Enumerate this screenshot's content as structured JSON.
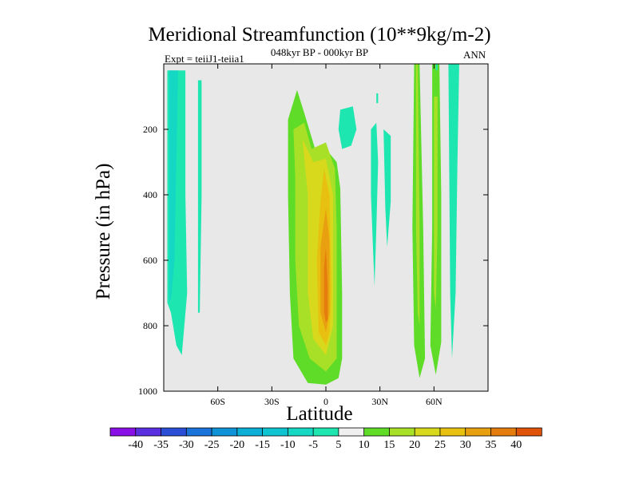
{
  "chart_data": {
    "type": "contour",
    "title": "Meridional Streamfunction (10**9kg/m-2)",
    "subtitle": "048kyr BP - 000kyr BP",
    "left_label": "Expt = teiiJ1-teiia1",
    "right_label": "ANN",
    "xlabel": "Latitude",
    "ylabel": "Pressure (in hPa)",
    "xlim": [
      -90,
      90
    ],
    "ylim": [
      1000,
      0
    ],
    "x_ticks": [
      {
        "value": -60,
        "label": "60S"
      },
      {
        "value": -30,
        "label": "30S"
      },
      {
        "value": 0,
        "label": "0"
      },
      {
        "value": 30,
        "label": "30N"
      },
      {
        "value": 60,
        "label": "60N"
      }
    ],
    "y_ticks": [
      {
        "value": 200,
        "label": "200"
      },
      {
        "value": 400,
        "label": "400"
      },
      {
        "value": 600,
        "label": "600"
      },
      {
        "value": 800,
        "label": "800"
      },
      {
        "value": 1000,
        "label": "1000"
      }
    ],
    "background_color": "#e8e8e8",
    "colorbar": {
      "levels": [
        "-40",
        "-35",
        "-30",
        "-25",
        "-20",
        "-15",
        "-10",
        "-5",
        "5",
        "10",
        "15",
        "20",
        "25",
        "30",
        "35",
        "40"
      ],
      "colors": [
        "#8a0fe6",
        "#5a2fe0",
        "#2a4fd6",
        "#1a73d8",
        "#0f93d6",
        "#0aaed6",
        "#0fc4d2",
        "#14d8c4",
        "#1ee6b0",
        "#f0f0f0",
        "#5edc28",
        "#a8e028",
        "#d8d81c",
        "#e8c010",
        "#e8a010",
        "#e47c0e",
        "#e0540a"
      ]
    },
    "regions": [
      {
        "name": "sh-high-lat-negative",
        "value": -5,
        "color": "#1ee6b0",
        "points": [
          [
            -88,
            20
          ],
          [
            -78,
            20
          ],
          [
            -78,
            400
          ],
          [
            -77,
            700
          ],
          [
            -80,
            890
          ],
          [
            -83,
            860
          ],
          [
            -86,
            760
          ],
          [
            -88,
            730
          ]
        ]
      },
      {
        "name": "sh-high-lat-negative-core",
        "value": -10,
        "color": "#14d8c4",
        "points": [
          [
            -87,
            20
          ],
          [
            -82,
            20
          ],
          [
            -83,
            300
          ],
          [
            -84,
            600
          ],
          [
            -86,
            720
          ],
          [
            -87,
            720
          ]
        ]
      },
      {
        "name": "sh-narrow-negative",
        "value": -5,
        "color": "#1ee6b0",
        "points": [
          [
            -71,
            50
          ],
          [
            -69,
            50
          ],
          [
            -69,
            400
          ],
          [
            -70,
            760
          ],
          [
            -71,
            760
          ]
        ]
      },
      {
        "name": "tropical-cell-5",
        "value": 5,
        "color": "#5edc28",
        "points": [
          [
            -21,
            170
          ],
          [
            -16,
            80
          ],
          [
            -12,
            150
          ],
          [
            -6,
            260
          ],
          [
            0,
            260
          ],
          [
            6,
            300
          ],
          [
            8,
            380
          ],
          [
            9,
            700
          ],
          [
            9,
            900
          ],
          [
            7,
            960
          ],
          [
            0,
            980
          ],
          [
            -10,
            975
          ],
          [
            -18,
            900
          ],
          [
            -20,
            700
          ],
          [
            -21,
            400
          ]
        ]
      },
      {
        "name": "tropical-cell-10",
        "value": 10,
        "color": "#a8e028",
        "points": [
          [
            -18,
            200
          ],
          [
            -12,
            180
          ],
          [
            -8,
            260
          ],
          [
            0,
            240
          ],
          [
            5,
            320
          ],
          [
            6,
            500
          ],
          [
            6,
            900
          ],
          [
            0,
            940
          ],
          [
            -9,
            900
          ],
          [
            -15,
            800
          ],
          [
            -17,
            600
          ],
          [
            -17,
            350
          ]
        ]
      },
      {
        "name": "tropical-cell-15",
        "value": 15,
        "color": "#d8d81c",
        "points": [
          [
            -13,
            230
          ],
          [
            -7,
            300
          ],
          [
            0,
            290
          ],
          [
            4,
            400
          ],
          [
            4,
            800
          ],
          [
            0,
            890
          ],
          [
            -7,
            840
          ],
          [
            -10,
            700
          ],
          [
            -10,
            400
          ]
        ]
      },
      {
        "name": "tropical-cell-20",
        "value": 20,
        "color": "#e8c010",
        "points": [
          [
            -1,
            320
          ],
          [
            2,
            400
          ],
          [
            3,
            700
          ],
          [
            2,
            820
          ],
          [
            0,
            860
          ],
          [
            -4,
            820
          ],
          [
            -5,
            600
          ],
          [
            -3,
            420
          ]
        ]
      },
      {
        "name": "tropical-cell-25",
        "value": 25,
        "color": "#e8a010",
        "points": [
          [
            0,
            440
          ],
          [
            2,
            540
          ],
          [
            2,
            760
          ],
          [
            0,
            820
          ],
          [
            -3,
            760
          ],
          [
            -3,
            560
          ]
        ]
      },
      {
        "name": "tropical-cell-30",
        "value": 30,
        "color": "#e47c0e",
        "points": [
          [
            0,
            560
          ],
          [
            1,
            680
          ],
          [
            1,
            780
          ],
          [
            0,
            790
          ],
          [
            -1,
            760
          ],
          [
            -1,
            620
          ]
        ]
      },
      {
        "name": "upper-blob-negative",
        "value": -5,
        "color": "#1ee6b0",
        "points": [
          [
            8,
            140
          ],
          [
            15,
            130
          ],
          [
            17,
            200
          ],
          [
            14,
            250
          ],
          [
            9,
            260
          ],
          [
            7,
            200
          ]
        ]
      },
      {
        "name": "mid-narrow-negative-1",
        "value": -5,
        "color": "#1ee6b0",
        "points": [
          [
            25,
            200
          ],
          [
            28,
            180
          ],
          [
            29,
            300
          ],
          [
            28,
            500
          ],
          [
            27,
            680
          ],
          [
            26,
            540
          ],
          [
            25,
            400
          ]
        ]
      },
      {
        "name": "mid-narrow-negative-2",
        "value": -5,
        "color": "#1ee6b0",
        "points": [
          [
            32,
            200
          ],
          [
            36,
            220
          ],
          [
            36,
            420
          ],
          [
            34,
            560
          ],
          [
            33,
            440
          ]
        ]
      },
      {
        "name": "mid-tiny-negative",
        "value": -5,
        "color": "#1ee6b0",
        "points": [
          [
            28,
            90
          ],
          [
            29,
            90
          ],
          [
            29,
            120
          ],
          [
            28,
            120
          ]
        ]
      },
      {
        "name": "nh-positive-1",
        "value": 5,
        "color": "#5edc28",
        "points": [
          [
            49,
            0
          ],
          [
            52,
            0
          ],
          [
            54,
            500
          ],
          [
            55,
            900
          ],
          [
            52,
            960
          ],
          [
            49,
            860
          ],
          [
            48,
            500
          ]
        ]
      },
      {
        "name": "nh-positive-1-core",
        "value": 10,
        "color": "#a8e028",
        "points": [
          [
            50,
            0
          ],
          [
            51,
            0
          ],
          [
            52,
            500
          ],
          [
            52,
            800
          ],
          [
            51,
            760
          ],
          [
            50,
            500
          ]
        ]
      },
      {
        "name": "nh-positive-2",
        "value": 5,
        "color": "#5edc28",
        "points": [
          [
            59,
            0
          ],
          [
            63,
            0
          ],
          [
            64,
            400
          ],
          [
            64,
            850
          ],
          [
            61,
            950
          ],
          [
            58,
            860
          ],
          [
            59,
            500
          ]
        ]
      },
      {
        "name": "nh-positive-2-core",
        "value": 10,
        "color": "#a8e028",
        "points": [
          [
            60,
            100
          ],
          [
            62,
            100
          ],
          [
            62,
            500
          ],
          [
            61,
            750
          ],
          [
            60,
            700
          ]
        ]
      },
      {
        "name": "nh-negative",
        "value": -5,
        "color": "#1ee6b0",
        "points": [
          [
            68,
            0
          ],
          [
            74,
            0
          ],
          [
            73,
            300
          ],
          [
            72,
            700
          ],
          [
            70,
            900
          ],
          [
            69,
            700
          ]
        ]
      },
      {
        "name": "nh-tiny-negative",
        "value": -5,
        "color": "#1ee6b0",
        "points": [
          [
            61,
            0
          ],
          [
            62,
            0
          ],
          [
            62,
            20
          ],
          [
            61,
            20
          ]
        ]
      }
    ]
  }
}
